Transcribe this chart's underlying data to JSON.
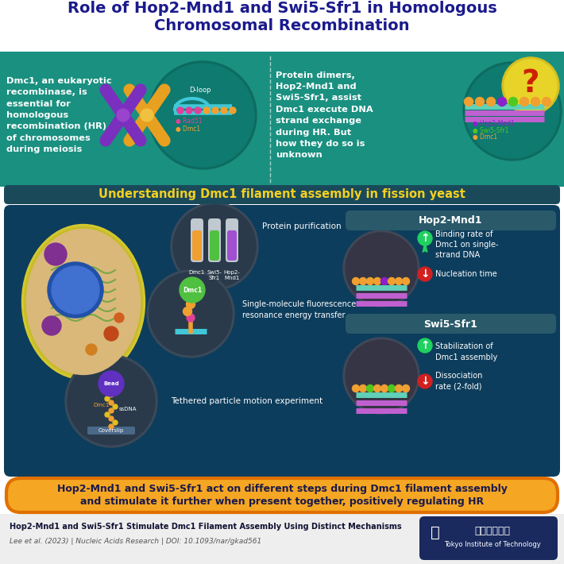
{
  "title_line1": "Role of Hop2-Mnd1 and Swi5-Sfr1 in Homologous",
  "title_line2": "Chromosomal Recombination",
  "title_color": "#1a1a8c",
  "teal_bg": "#1a9080",
  "dark_teal_bg": "#0d6b60",
  "section2_bg": "#0d3d5c",
  "yellow_text": "#f5d020",
  "orange_bg": "#f5a623",
  "white": "#ffffff",
  "left_text": "Dmc1, an eukaryotic\nrecombinase, is\nessential for\nhomologous\nrecombination (HR)\nof chromosomes\nduring meiosis",
  "right_text": "Protein dimers,\nHop2-Mnd1 and\nSwi5-Sfr1, assist\nDmc1 execute DNA\nstrand exchange\nduring HR. But\nhow they do so is\nunknown",
  "section2_title": "Understanding Dmc1 filament assembly in fission yeast",
  "hop2_title": "Hop2-Mnd1",
  "swi5_title": "Swi5-Sfr1",
  "hop2_up": "Binding rate of\nDmc1 on single-\nstrand DNA",
  "hop2_down": "Nucleation time",
  "swi5_up": "Stabilization of\nDmc1 assembly",
  "swi5_down": "Dissociation\nrate (2-fold)",
  "protein_purif": "Protein purification",
  "smfret": "Single-molecule fluorescence\nresonance energy transfer",
  "tpm": "Tethered particle motion experiment",
  "conclusion_line1": "Hop2-Mnd1 and Swi5-Sfr1 act on different steps during Dmc1 filament assembly",
  "conclusion_line2": "and stimulate it further when present together, positively regulating HR",
  "ref_title": "Hop2-Mnd1 and Swi5-Sfr1 Stimulate Dmc1 Filament Assembly Using Distinct Mechanisms",
  "ref_authors": "Lee et al. (2023) | Nucleic Acids Research | DOI: 10.1093/nar/gkad561",
  "footer_bg": "#eeeeee",
  "navy_bg": "#1a2a5e",
  "section_banner_bg": "#1a4a5a",
  "hop2_box_bg": "#2a5a6a",
  "result_area_bg": "#1a3a4a"
}
